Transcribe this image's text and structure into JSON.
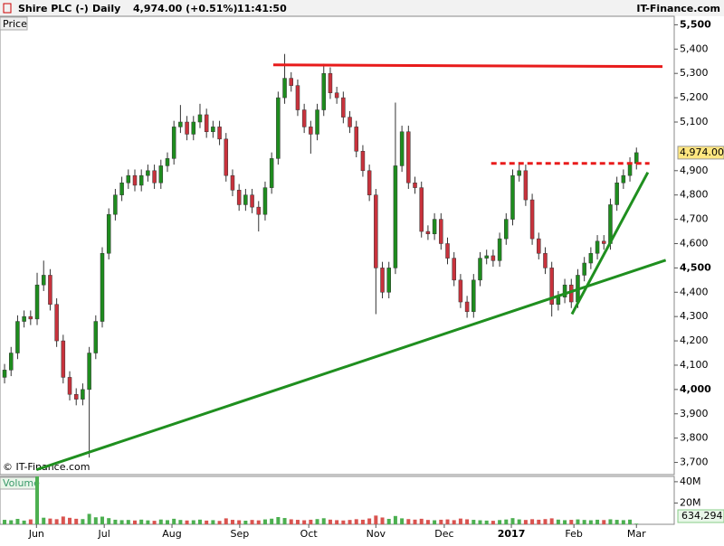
{
  "chart_data": {
    "type": "candlestick",
    "title": "Shire PLC (-)",
    "interval": "Daily",
    "quote": "4,974.00 (+0.51%)",
    "time": "11:41:50",
    "source": "IT-Finance.com",
    "copyright": "© IT-Finance.com",
    "price_label": "Price",
    "last_price_label": "4,974.00",
    "up_color": "#1e8c1e",
    "down_color": "#c8323c",
    "xlim": [
      -0.7,
      102.8
    ],
    "ylim": [
      3650,
      5535
    ],
    "xticks": [
      {
        "value": 4.9,
        "label": "Jun"
      },
      {
        "value": 15.3,
        "label": "Jul"
      },
      {
        "value": 25.7,
        "label": "Aug"
      },
      {
        "value": 36.1,
        "label": "Sep"
      },
      {
        "value": 46.7,
        "label": "Oct"
      },
      {
        "value": 57,
        "label": "Nov"
      },
      {
        "value": 67.5,
        "label": "Dec"
      },
      {
        "value": 77.8,
        "label": "2017"
      },
      {
        "value": 87.4,
        "label": "Feb"
      },
      {
        "value": 97,
        "label": "Mar"
      }
    ],
    "yticks": [
      {
        "value": 3700,
        "label": "3,700"
      },
      {
        "value": 3800,
        "label": "3,800"
      },
      {
        "value": 3900,
        "label": "3,900"
      },
      {
        "value": 4000,
        "label": "4,000"
      },
      {
        "value": 4100,
        "label": "4,100"
      },
      {
        "value": 4200,
        "label": "4,200"
      },
      {
        "value": 4300,
        "label": "4,300"
      },
      {
        "value": 4400,
        "label": "4,400"
      },
      {
        "value": 4500,
        "label": "4,500"
      },
      {
        "value": 4600,
        "label": "4,600"
      },
      {
        "value": 4700,
        "label": "4,700"
      },
      {
        "value": 4800,
        "label": "4,800"
      },
      {
        "value": 4900,
        "label": "4,900"
      },
      {
        "value": 5100,
        "label": "5,100"
      },
      {
        "value": 5200,
        "label": "5,200"
      },
      {
        "value": 5300,
        "label": "5,300"
      },
      {
        "value": 5400,
        "label": "5,400"
      },
      {
        "value": 5500,
        "label": "5,500"
      }
    ],
    "open": [
      4050,
      4080,
      4150,
      4280,
      4300,
      4290,
      4430,
      4470,
      4350,
      4200,
      4050,
      3980,
      3960,
      4000,
      4150,
      4280,
      4560,
      4720,
      4800,
      4850,
      4880,
      4840,
      4880,
      4900,
      4850,
      4920,
      4950,
      5080,
      5100,
      5050,
      5100,
      5130,
      5060,
      5080,
      5030,
      4880,
      4820,
      4760,
      4800,
      4750,
      4720,
      4830,
      4950,
      5200,
      5280,
      5250,
      5150,
      5080,
      5050,
      5150,
      5300,
      5220,
      5200,
      5120,
      5080,
      4980,
      4900,
      4800,
      4500,
      4400,
      4500,
      4920,
      5060,
      4850,
      4830,
      4650,
      4640,
      4700,
      4600,
      4540,
      4450,
      4360,
      4320,
      4450,
      4540,
      4550,
      4530,
      4620,
      4700,
      4880,
      4900,
      4780,
      4620,
      4560,
      4500,
      4350,
      4380,
      4430,
      4360,
      4470,
      4520,
      4560,
      4610,
      4600,
      4760,
      4850,
      4880,
      4930
    ],
    "high": [
      4105,
      4175,
      4305,
      4325,
      4325,
      4480,
      4530,
      4495,
      4375,
      4225,
      4075,
      4005,
      4025,
      4175,
      4305,
      4585,
      4745,
      4825,
      4875,
      4905,
      4905,
      4905,
      4925,
      4925,
      4945,
      4975,
      5105,
      5170,
      5125,
      5125,
      5175,
      5155,
      5105,
      5105,
      5055,
      4905,
      4845,
      4825,
      4825,
      4775,
      4855,
      4975,
      5225,
      5380,
      5305,
      5275,
      5175,
      5105,
      5175,
      5340,
      5325,
      5245,
      5225,
      5145,
      5105,
      5005,
      4925,
      4825,
      4525,
      4525,
      5180,
      5085,
      5085,
      4875,
      4855,
      4675,
      4725,
      4725,
      4625,
      4565,
      4475,
      4385,
      4475,
      4565,
      4575,
      4575,
      4645,
      4725,
      4905,
      4935,
      4925,
      4805,
      4645,
      4585,
      4525,
      4405,
      4455,
      4455,
      4495,
      4545,
      4585,
      4635,
      4635,
      4785,
      4875,
      4905,
      4955,
      4995
    ],
    "low": [
      4025,
      4055,
      4125,
      4255,
      4265,
      4265,
      4405,
      4325,
      4175,
      4025,
      3955,
      3935,
      3935,
      3720,
      4125,
      4255,
      4535,
      4695,
      4775,
      4825,
      4815,
      4815,
      4855,
      4825,
      4825,
      4895,
      4925,
      5055,
      5025,
      5025,
      5075,
      5035,
      5035,
      5005,
      4855,
      4795,
      4735,
      4735,
      4725,
      4650,
      4695,
      4805,
      4925,
      5175,
      5225,
      5125,
      5055,
      4970,
      5025,
      5125,
      5195,
      5175,
      5095,
      5055,
      4955,
      4875,
      4775,
      4310,
      4375,
      4375,
      4475,
      4895,
      4825,
      4805,
      4625,
      4615,
      4615,
      4575,
      4515,
      4425,
      4335,
      4295,
      4295,
      4425,
      4515,
      4505,
      4505,
      4595,
      4675,
      4855,
      4755,
      4595,
      4535,
      4475,
      4300,
      4325,
      4355,
      4335,
      4335,
      4445,
      4495,
      4535,
      4575,
      4575,
      4735,
      4825,
      4855,
      4905
    ],
    "close": [
      4080,
      4150,
      4280,
      4300,
      4290,
      4430,
      4470,
      4350,
      4200,
      4050,
      3980,
      3960,
      4000,
      4150,
      4280,
      4560,
      4720,
      4800,
      4850,
      4880,
      4840,
      4880,
      4900,
      4850,
      4920,
      4950,
      5080,
      5100,
      5050,
      5100,
      5130,
      5060,
      5080,
      5030,
      4880,
      4820,
      4760,
      4800,
      4750,
      4720,
      4830,
      4950,
      5200,
      5280,
      5250,
      5150,
      5080,
      5050,
      5150,
      5300,
      5220,
      5200,
      5120,
      5080,
      4980,
      4900,
      4800,
      4500,
      4400,
      4500,
      4920,
      5060,
      4850,
      4830,
      4650,
      4640,
      4700,
      4600,
      4540,
      4450,
      4360,
      4320,
      4450,
      4540,
      4550,
      4530,
      4620,
      4700,
      4880,
      4900,
      4780,
      4620,
      4560,
      4500,
      4350,
      4380,
      4430,
      4360,
      4470,
      4520,
      4560,
      4610,
      4600,
      4760,
      4850,
      4880,
      4930,
      4974
    ],
    "trendlines": [
      {
        "color": "#e81b1b",
        "dashed": false,
        "x": [
          41.25,
          101
        ],
        "y": [
          5335,
          5328
        ]
      },
      {
        "color": "#e81b1b",
        "dashed": true,
        "x": [
          74.7,
          99
        ],
        "y": [
          4930,
          4930
        ]
      },
      {
        "color": "#1f8f1f",
        "dashed": false,
        "x": [
          4.9,
          101.5
        ],
        "y": [
          3670,
          4532
        ]
      },
      {
        "color": "#1f8f1f",
        "dashed": false,
        "x": [
          87.1,
          98.75
        ],
        "y": [
          4310,
          4893
        ]
      }
    ],
    "volume": {
      "label": "Volume",
      "last_label": "634,294",
      "ylim": [
        0,
        45000000
      ],
      "yticks": [
        {
          "value": 20000000,
          "label": "20M"
        },
        {
          "value": 40000000,
          "label": "40M"
        }
      ],
      "values": [
        4200000,
        3800000,
        5100000,
        3500000,
        4600000,
        45000000,
        6200000,
        5400000,
        4800000,
        7300000,
        6100000,
        5200000,
        4900000,
        9800000,
        6600000,
        7200000,
        5800000,
        4300000,
        3900000,
        4100000,
        3600000,
        4400000,
        3700000,
        3300000,
        4500000,
        3900000,
        5200000,
        4100000,
        3600000,
        3800000,
        4400000,
        3500000,
        3900000,
        3200000,
        5600000,
        4200000,
        3800000,
        3400000,
        4100000,
        3700000,
        4600000,
        5300000,
        6800000,
        5900000,
        4700000,
        4200000,
        3800000,
        4300000,
        4900000,
        5700000,
        4400000,
        3900000,
        3600000,
        4100000,
        4800000,
        4300000,
        5500000,
        8200000,
        6400000,
        5100000,
        7800000,
        5600000,
        4900000,
        4400000,
        5200000,
        4100000,
        3800000,
        4300000,
        4600000,
        3900000,
        5400000,
        4700000,
        4200000,
        3800000,
        3500000,
        3300000,
        4000000,
        4500000,
        5800000,
        4600000,
        4100000,
        4800000,
        4300000,
        4900000,
        5600000,
        4400000,
        3900000,
        4200000,
        4600000,
        4100000,
        3800000,
        4300000,
        4000000,
        4700000,
        4200000,
        3900000,
        4400000,
        634294
      ],
      "up_color": "#4caf50",
      "down_color": "#d9534f"
    }
  }
}
